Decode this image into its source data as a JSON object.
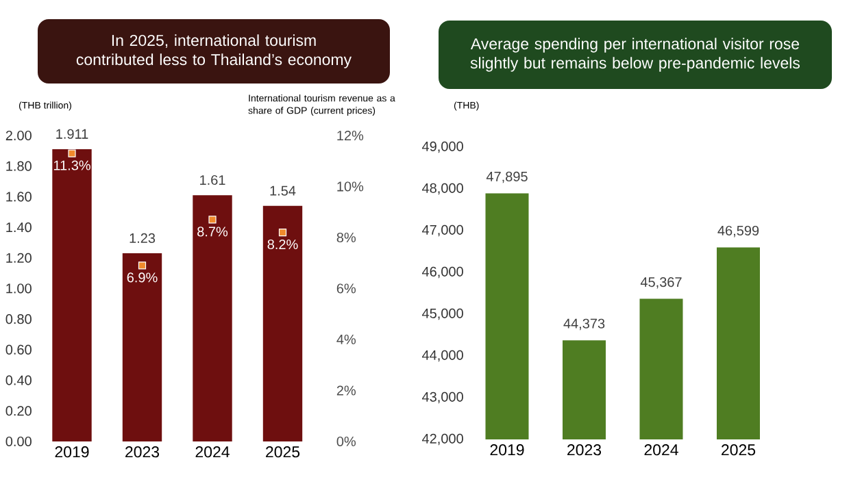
{
  "chart_data": [
    {
      "type": "bar",
      "title": "In 2025, international tourism contributed less to Thailand’s economy",
      "ylabel": "(THB trillion)",
      "y2label": "International tourism revenue as a share of GDP (current prices)",
      "categories": [
        "2019",
        "2023",
        "2024",
        "2025"
      ],
      "series": [
        {
          "color": "#6e0f0f",
          "values": [
            1.911,
            1.23,
            1.61,
            1.54
          ]
        },
        {
          "type": "scatter",
          "axis": "y2",
          "marker": "square",
          "color": "#f08a2c",
          "values": [
            11.3,
            6.9,
            8.7,
            8.2
          ],
          "value_labels": [
            "11.3%",
            "6.9%",
            "8.7%",
            "8.2%"
          ]
        }
      ],
      "ylim": [
        0,
        2
      ],
      "yticks": [
        {
          "value": 0,
          "label": "0.00"
        },
        {
          "value": 0.2,
          "label": "0.20"
        },
        {
          "value": 0.4,
          "label": "0.40"
        },
        {
          "value": 0.6,
          "label": "0.60"
        },
        {
          "value": 0.8,
          "label": "0.80"
        },
        {
          "value": 1,
          "label": "1.00"
        },
        {
          "value": 1.2,
          "label": "1.20"
        },
        {
          "value": 1.4,
          "label": "1.40"
        },
        {
          "value": 1.6,
          "label": "1.60"
        },
        {
          "value": 1.8,
          "label": "1.80"
        },
        {
          "value": 2,
          "label": "2.00"
        }
      ],
      "y2lim": [
        0,
        12
      ],
      "y2ticks": [
        {
          "value": 0,
          "label": "0%"
        },
        {
          "value": 2,
          "label": "2%"
        },
        {
          "value": 4,
          "label": "4%"
        },
        {
          "value": 6,
          "label": "6%"
        },
        {
          "value": 8,
          "label": "8%"
        },
        {
          "value": 10,
          "label": "10%"
        },
        {
          "value": 12,
          "label": "12%"
        }
      ],
      "data_labels": true,
      "grid": false
    },
    {
      "type": "bar",
      "title": "Average spending per international visitor rose slightly but remains below pre-pandemic levels",
      "ylabel": "(THB)",
      "categories": [
        "2019",
        "2023",
        "2024",
        "2025"
      ],
      "series": [
        {
          "color": "#4f7d22",
          "values": [
            47895,
            44373,
            45367,
            46599
          ],
          "value_labels": [
            "47,895",
            "44,373",
            "45,367",
            "46,599"
          ]
        }
      ],
      "ylim": [
        42000,
        49000
      ],
      "yticks": [
        {
          "value": 42000,
          "label": "42,000"
        },
        {
          "value": 43000,
          "label": "43,000"
        },
        {
          "value": 44000,
          "label": "44,000"
        },
        {
          "value": 45000,
          "label": "45,000"
        },
        {
          "value": 46000,
          "label": "46,000"
        },
        {
          "value": 47000,
          "label": "47,000"
        },
        {
          "value": 48000,
          "label": "48,000"
        },
        {
          "value": 49000,
          "label": "49,000"
        }
      ],
      "grid": false
    }
  ]
}
